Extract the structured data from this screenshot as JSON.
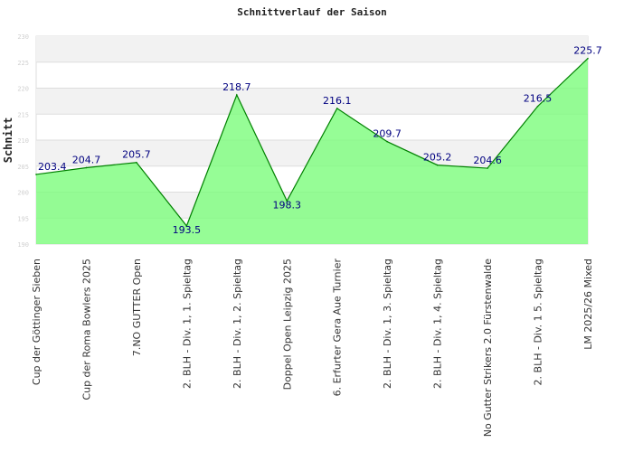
{
  "chart_data": {
    "type": "area",
    "title": "Schnittverlauf der Saison",
    "xlabel": "",
    "ylabel": "Schnitt",
    "ylim": [
      190,
      230
    ],
    "yticks": [
      190,
      195,
      200,
      205,
      210,
      215,
      220,
      225,
      230
    ],
    "grid": true,
    "categories": [
      "Cup der Göttinger Sieben",
      "Cup der Roma Bowlers 2025",
      "7.NO GUTTER Open",
      "2. BLH - Div. 1, 1. Spieltag",
      "2. BLH - Div. 1, 2. Spieltag",
      "Doppel Open Leipzig 2025",
      "6. Erfurter Gera Aue Turnier",
      "2. BLH - Div. 1, 3. Spieltag",
      "2. BLH - Div. 1, 4. Spieltag",
      "No Gutter Strikers 2.0 Fürstenwalde",
      "2. BLH - Div. 1  5. Spieltag",
      "LM 2025/26 Mixed"
    ],
    "values": [
      203.4,
      204.7,
      205.7,
      193.5,
      218.7,
      198.3,
      216.1,
      209.7,
      205.2,
      204.6,
      216.5,
      225.7
    ],
    "value_labels": [
      "203.4",
      "204.7",
      "205.7",
      "193.5",
      "218.7",
      "198.3",
      "216.1",
      "209.7",
      "205.2",
      "204.6",
      "216.5",
      "225.7"
    ],
    "colors": {
      "fill": "#7cfc7c",
      "line": "#008000",
      "band": "#f2f2f2",
      "grid": "#dddddd",
      "label": "#000080"
    }
  }
}
